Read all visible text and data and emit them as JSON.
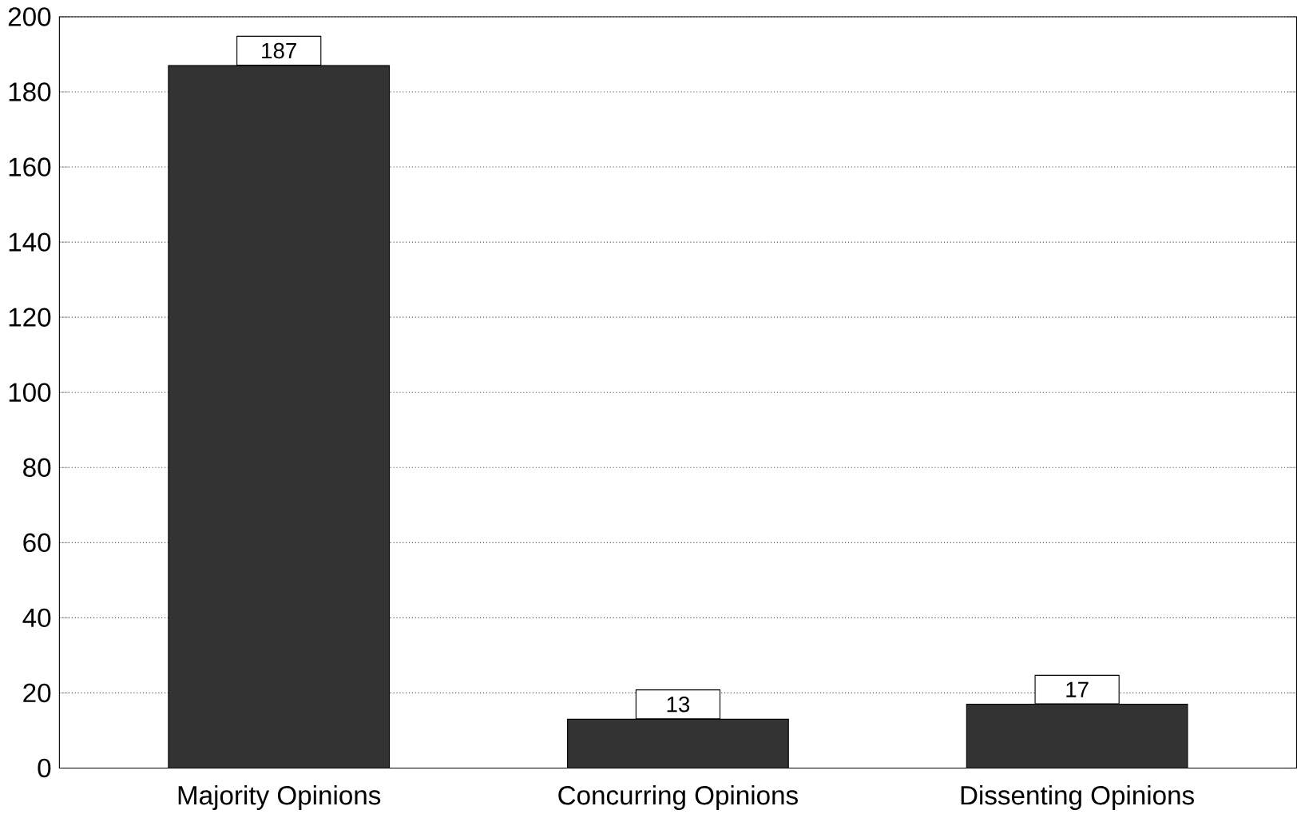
{
  "chart_data": {
    "type": "bar",
    "categories": [
      "Majority Opinions",
      "Concurring Opinions",
      "Dissenting Opinions"
    ],
    "values": [
      187,
      13,
      17
    ],
    "color": "#333333",
    "ylim": [
      0,
      200
    ],
    "yticks": [
      0,
      20,
      40,
      60,
      80,
      100,
      120,
      140,
      160,
      180,
      200
    ],
    "grid": "y",
    "data_labels": true
  }
}
